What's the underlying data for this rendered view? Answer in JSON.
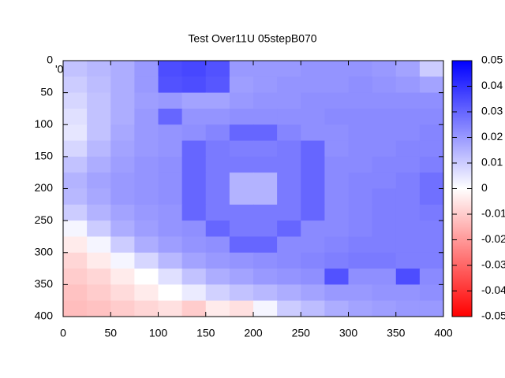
{
  "chart_data": {
    "type": "heatmap",
    "title": "Test Over11U 05stepB070",
    "annotation": "'0",
    "xlim": [
      0,
      400
    ],
    "ylim": [
      0,
      400
    ],
    "y_reversed": true,
    "xticks": [
      0,
      50,
      100,
      150,
      200,
      250,
      300,
      350,
      400
    ],
    "yticks": [
      0,
      50,
      100,
      150,
      200,
      250,
      300,
      350,
      400
    ],
    "zlim": [
      -0.05,
      0.05
    ],
    "zticks": [
      0.05,
      0.04,
      0.03,
      0.02,
      0.01,
      0,
      -0.01,
      -0.02,
      -0.03,
      -0.04,
      -0.05
    ],
    "palette": [
      "#ff0000",
      "#ffffff",
      "#0000ff"
    ],
    "z": [
      [
        0.012,
        0.014,
        0.016,
        0.02,
        0.035,
        0.036,
        0.034,
        0.02,
        0.02,
        0.02,
        0.021,
        0.021,
        0.021,
        0.02,
        0.018,
        0.01
      ],
      [
        0.01,
        0.013,
        0.016,
        0.02,
        0.034,
        0.035,
        0.033,
        0.019,
        0.02,
        0.021,
        0.021,
        0.021,
        0.022,
        0.021,
        0.02,
        0.018
      ],
      [
        0.008,
        0.012,
        0.016,
        0.019,
        0.02,
        0.018,
        0.018,
        0.02,
        0.021,
        0.021,
        0.022,
        0.022,
        0.022,
        0.022,
        0.022,
        0.022
      ],
      [
        0.006,
        0.012,
        0.016,
        0.02,
        0.03,
        0.021,
        0.021,
        0.022,
        0.022,
        0.022,
        0.022,
        0.023,
        0.023,
        0.023,
        0.023,
        0.023
      ],
      [
        0.005,
        0.012,
        0.017,
        0.02,
        0.021,
        0.022,
        0.024,
        0.03,
        0.03,
        0.024,
        0.022,
        0.022,
        0.023,
        0.023,
        0.023,
        0.024
      ],
      [
        0.008,
        0.014,
        0.018,
        0.02,
        0.021,
        0.03,
        0.026,
        0.025,
        0.025,
        0.026,
        0.03,
        0.022,
        0.023,
        0.023,
        0.024,
        0.024
      ],
      [
        0.012,
        0.016,
        0.019,
        0.021,
        0.022,
        0.03,
        0.026,
        0.026,
        0.026,
        0.026,
        0.03,
        0.023,
        0.023,
        0.024,
        0.024,
        0.025
      ],
      [
        0.015,
        0.018,
        0.02,
        0.021,
        0.022,
        0.03,
        0.026,
        0.015,
        0.015,
        0.026,
        0.03,
        0.023,
        0.024,
        0.024,
        0.025,
        0.028
      ],
      [
        0.014,
        0.017,
        0.02,
        0.021,
        0.022,
        0.03,
        0.026,
        0.015,
        0.015,
        0.026,
        0.03,
        0.023,
        0.024,
        0.025,
        0.025,
        0.028
      ],
      [
        0.01,
        0.015,
        0.018,
        0.02,
        0.021,
        0.03,
        0.026,
        0.026,
        0.026,
        0.026,
        0.03,
        0.023,
        0.024,
        0.025,
        0.025,
        0.026
      ],
      [
        0.002,
        0.01,
        0.016,
        0.019,
        0.021,
        0.022,
        0.03,
        0.026,
        0.026,
        0.03,
        0.023,
        0.023,
        0.024,
        0.025,
        0.025,
        0.025
      ],
      [
        -0.004,
        0.002,
        0.01,
        0.016,
        0.019,
        0.021,
        0.022,
        0.03,
        0.03,
        0.023,
        0.023,
        0.024,
        0.025,
        0.025,
        0.025,
        0.025
      ],
      [
        -0.008,
        -0.004,
        0.002,
        0.008,
        0.014,
        0.018,
        0.02,
        0.021,
        0.022,
        0.023,
        0.024,
        0.025,
        0.026,
        0.026,
        0.025,
        0.025
      ],
      [
        -0.01,
        -0.008,
        -0.004,
        0.0,
        0.006,
        0.012,
        0.016,
        0.018,
        0.02,
        0.021,
        0.022,
        0.034,
        0.022,
        0.022,
        0.035,
        0.023
      ],
      [
        -0.012,
        -0.01,
        -0.007,
        -0.004,
        0.0,
        0.004,
        0.009,
        0.012,
        0.014,
        0.016,
        0.018,
        0.02,
        0.02,
        0.021,
        0.021,
        0.022
      ],
      [
        -0.013,
        -0.012,
        -0.01,
        -0.008,
        -0.006,
        -0.01,
        -0.004,
        -0.006,
        0.002,
        0.01,
        0.013,
        0.016,
        0.018,
        0.019,
        0.02,
        0.02
      ]
    ]
  }
}
